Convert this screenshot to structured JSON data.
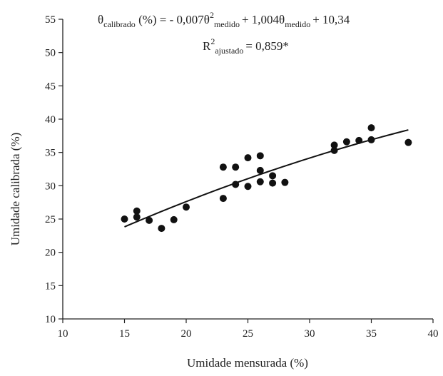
{
  "chart_data": {
    "type": "scatter",
    "xlabel": "Umidade mensurada (%)",
    "ylabel": "Umidade calibrada (%)",
    "xlim": [
      10,
      40
    ],
    "ylim": [
      10,
      55
    ],
    "xticks": [
      10,
      15,
      20,
      25,
      30,
      35,
      40
    ],
    "yticks": [
      10,
      15,
      20,
      25,
      30,
      35,
      40,
      45,
      50,
      55
    ],
    "grid": false,
    "equation": {
      "theta": "θ",
      "sub_calibrado": "calibrado",
      "part1": " (%) = - 0,007",
      "sup2": "2",
      "sub_medido": "medido",
      "part2": "+ 1,004",
      "part3": "+ 10,34"
    },
    "r2": {
      "R": "R",
      "sup": "2",
      "sub": "ajustado",
      "value": "= 0,859*"
    },
    "points": [
      {
        "x": 15,
        "y": 25.0
      },
      {
        "x": 16,
        "y": 26.2
      },
      {
        "x": 16,
        "y": 25.3
      },
      {
        "x": 17,
        "y": 24.8
      },
      {
        "x": 18,
        "y": 23.6
      },
      {
        "x": 19,
        "y": 24.9
      },
      {
        "x": 20,
        "y": 26.8
      },
      {
        "x": 23,
        "y": 32.8
      },
      {
        "x": 23,
        "y": 28.1
      },
      {
        "x": 24,
        "y": 32.8
      },
      {
        "x": 24,
        "y": 30.2
      },
      {
        "x": 25,
        "y": 34.2
      },
      {
        "x": 25,
        "y": 29.9
      },
      {
        "x": 26,
        "y": 34.5
      },
      {
        "x": 26,
        "y": 32.3
      },
      {
        "x": 26,
        "y": 30.6
      },
      {
        "x": 27,
        "y": 31.5
      },
      {
        "x": 27,
        "y": 30.4
      },
      {
        "x": 28,
        "y": 30.5
      },
      {
        "x": 32,
        "y": 36.1
      },
      {
        "x": 32,
        "y": 35.3
      },
      {
        "x": 33,
        "y": 36.6
      },
      {
        "x": 34,
        "y": 36.8
      },
      {
        "x": 35,
        "y": 38.7
      },
      {
        "x": 35,
        "y": 36.9
      },
      {
        "x": 38,
        "y": 36.5
      }
    ],
    "fit": {
      "a": -0.007,
      "b": 1.004,
      "c": 10.34,
      "x_from": 15,
      "x_to": 38
    }
  }
}
